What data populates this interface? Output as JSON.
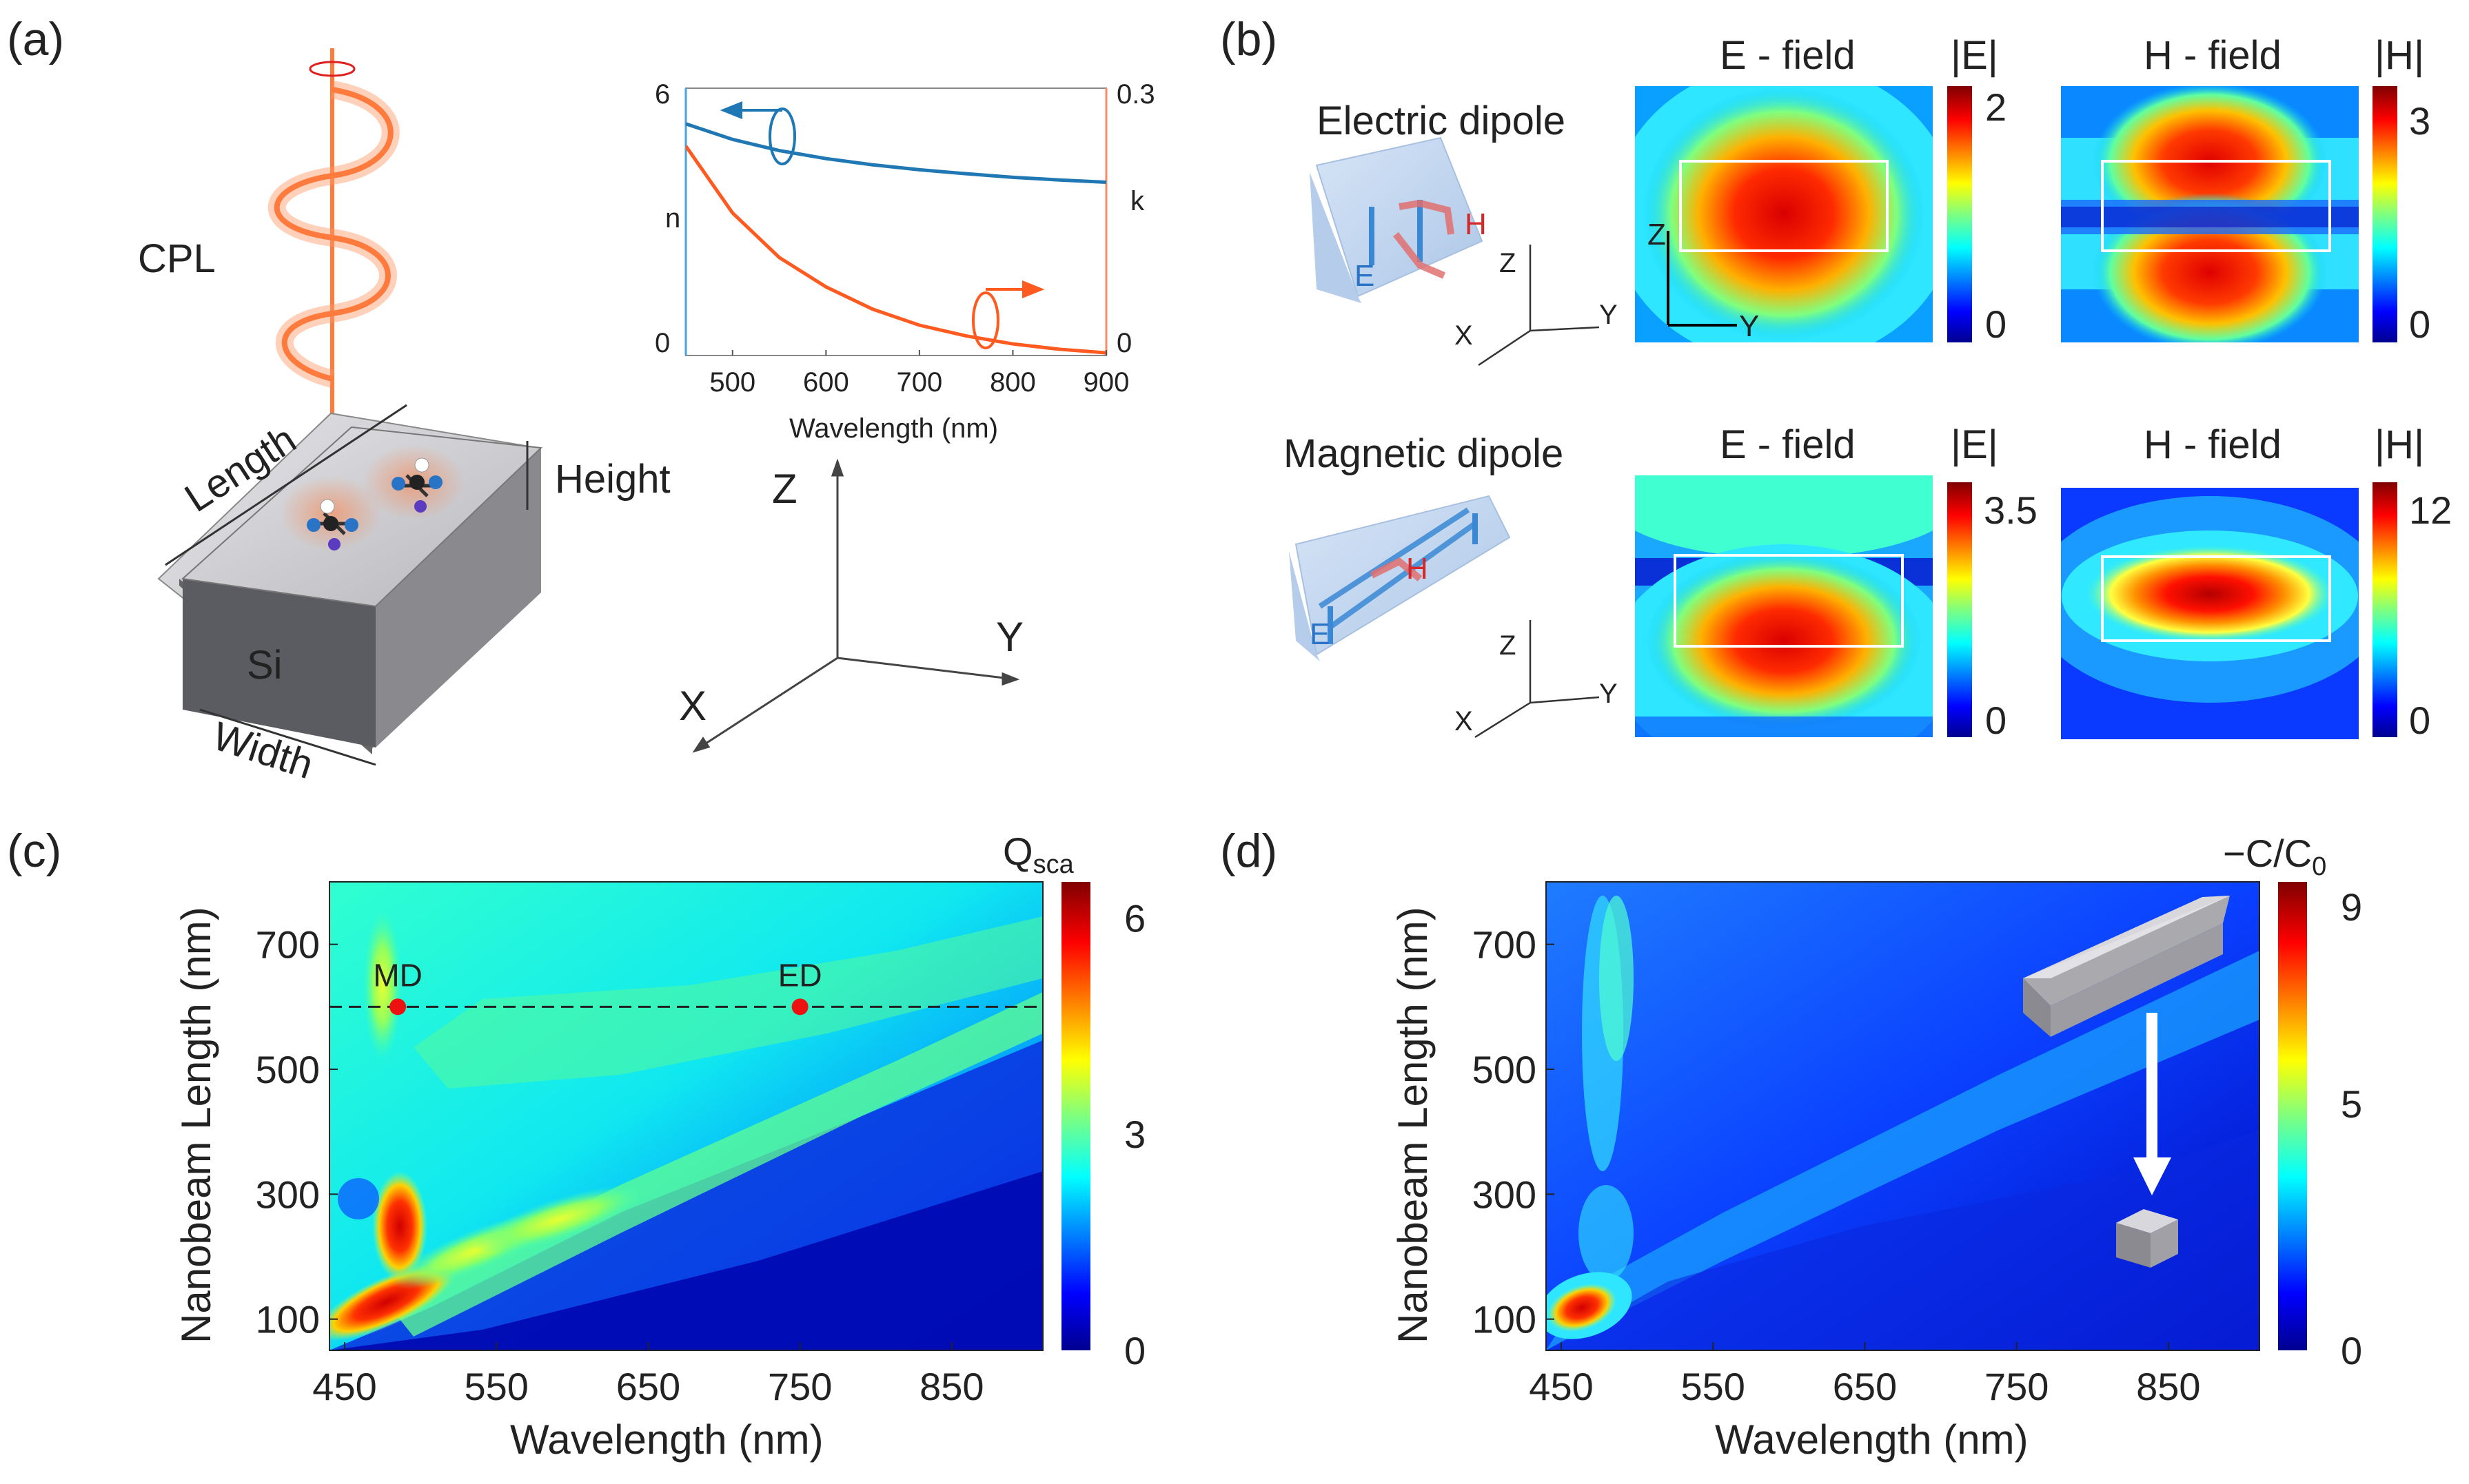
{
  "panel_a": {
    "label": "(a)",
    "light_label": "CPL",
    "material": "Si",
    "dims": {
      "length": "Length",
      "height": "Height",
      "width": "Width"
    },
    "axes": {
      "z": "Z",
      "y": "Y",
      "x": "X"
    },
    "inset_chart": {
      "type": "line",
      "xlabel": "Wavelength (nm)",
      "ylabel_left": "n",
      "ylabel_right": "k",
      "xlim": [
        450,
        900
      ],
      "ylim_left": [
        0,
        6
      ],
      "ylim_right": [
        0,
        0.3
      ],
      "x_ticks": [
        "500",
        "600",
        "700",
        "800",
        "900"
      ],
      "y_left_ticks": [
        "6",
        "0"
      ],
      "y_right_ticks": [
        "0.3",
        "0"
      ],
      "series": [
        {
          "name": "n",
          "axis": "left",
          "color": "#1f77b4",
          "x": [
            450,
            500,
            550,
            600,
            650,
            700,
            750,
            800,
            850,
            900
          ],
          "y": [
            5.2,
            4.85,
            4.6,
            4.42,
            4.28,
            4.17,
            4.08,
            4.0,
            3.94,
            3.89
          ]
        },
        {
          "name": "k",
          "axis": "right",
          "color": "#ff5a1f",
          "x": [
            450,
            500,
            550,
            600,
            650,
            700,
            750,
            800,
            850,
            900
          ],
          "y": [
            0.235,
            0.16,
            0.11,
            0.077,
            0.052,
            0.034,
            0.022,
            0.013,
            0.007,
            0.003
          ]
        }
      ]
    }
  },
  "panel_b": {
    "label": "(b)",
    "rows": [
      {
        "title": "Electric dipole",
        "e_title": "E - field",
        "h_title": "H - field",
        "e_bar_label": "|E|",
        "e_max": "2",
        "e_min": "0",
        "h_bar_label": "|H|",
        "h_max": "3",
        "h_min": "0",
        "arrow_e": "E",
        "arrow_h": "H",
        "axis_z": "Z",
        "axis_y": "Y",
        "axis_x": "X"
      },
      {
        "title": "Magnetic dipole",
        "e_title": "E - field",
        "h_title": "H - field",
        "e_bar_label": "|E|",
        "e_max": "3.5",
        "e_min": "0",
        "h_bar_label": "|H|",
        "h_max": "12",
        "h_min": "0",
        "arrow_e": "E",
        "arrow_h": "H",
        "axis_z": "Z",
        "axis_y": "Y",
        "axis_x": "X"
      }
    ],
    "map_axis_z": "Z",
    "map_axis_y": "Y"
  },
  "chart_data": [
    {
      "type": "heatmap",
      "panel": "(c)",
      "xlabel": "Wavelength (nm)",
      "ylabel": "Nanobeam Length (nm)",
      "xlim": [
        440,
        910
      ],
      "ylim": [
        50,
        800
      ],
      "x_ticks": [
        "450",
        "550",
        "650",
        "750",
        "850"
      ],
      "y_ticks": [
        "100",
        "300",
        "500",
        "700"
      ],
      "colorbar_label": "Q",
      "colorbar_sub": "sca",
      "colorbar_ticks": [
        "6",
        "3",
        "0"
      ],
      "colorbar_range": [
        0,
        6.5
      ],
      "dashed_line_length": 600,
      "markers": [
        {
          "label": "MD",
          "wavelength": 485,
          "length": 600
        },
        {
          "label": "ED",
          "wavelength": 750,
          "length": 600
        }
      ]
    },
    {
      "type": "heatmap",
      "panel": "(d)",
      "xlabel": "Wavelength (nm)",
      "ylabel": "Nanobeam Length (nm)",
      "xlim": [
        440,
        910
      ],
      "ylim": [
        50,
        800
      ],
      "x_ticks": [
        "450",
        "550",
        "650",
        "750",
        "850"
      ],
      "y_ticks": [
        "100",
        "300",
        "500",
        "700"
      ],
      "colorbar_label": "−C/C",
      "colorbar_sub": "0",
      "colorbar_ticks": [
        "9",
        "5",
        "0"
      ],
      "colorbar_range": [
        0,
        9.5
      ]
    }
  ]
}
